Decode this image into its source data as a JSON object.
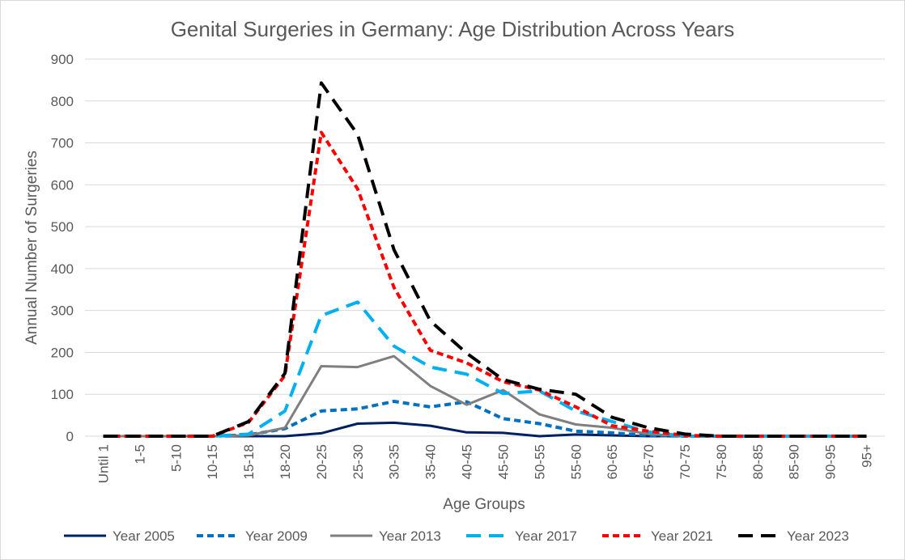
{
  "chart_data": {
    "type": "line",
    "title": "Genital Surgeries in Germany: Age Distribution Across Years",
    "xlabel": "Age Groups",
    "ylabel": "Annual Number of Surgeries",
    "ylim": [
      0,
      900
    ],
    "yticks": [
      0,
      100,
      200,
      300,
      400,
      500,
      600,
      700,
      800,
      900
    ],
    "grid": true,
    "legend_position": "bottom",
    "categories": [
      "Until 1",
      "1-5",
      "5-10",
      "10-15",
      "15-18",
      "18-20",
      "20-25",
      "25-30",
      "30-35",
      "35-40",
      "40-45",
      "45-50",
      "50-55",
      "55-60",
      "60-65",
      "65-70",
      "70-75",
      "75-80",
      "80-85",
      "85-90",
      "90-95",
      "95+"
    ],
    "series": [
      {
        "name": "Year 2005",
        "color": "#002060",
        "dash": "solid",
        "values": [
          0,
          0,
          0,
          0,
          0,
          0,
          7,
          30,
          32,
          25,
          9,
          8,
          0,
          4,
          2,
          0,
          0,
          0,
          0,
          0,
          0,
          0
        ]
      },
      {
        "name": "Year 2009",
        "color": "#0070C0",
        "dash": "dash",
        "values": [
          0,
          0,
          0,
          0,
          3,
          18,
          60,
          65,
          83,
          70,
          82,
          42,
          30,
          12,
          8,
          2,
          0,
          0,
          0,
          0,
          0,
          0
        ]
      },
      {
        "name": "Year 2013",
        "color": "#7F7F7F",
        "dash": "solid",
        "values": [
          0,
          0,
          0,
          0,
          2,
          20,
          167,
          165,
          191,
          120,
          75,
          110,
          52,
          28,
          20,
          5,
          0,
          0,
          0,
          0,
          0,
          0
        ]
      },
      {
        "name": "Year 2017",
        "color": "#00B0F0",
        "dash": "longdash",
        "values": [
          0,
          0,
          0,
          0,
          5,
          60,
          288,
          320,
          215,
          165,
          148,
          102,
          108,
          60,
          35,
          10,
          0,
          0,
          0,
          0,
          0,
          0
        ]
      },
      {
        "name": "Year 2021",
        "color": "#FF0000",
        "dash": "dash",
        "values": [
          0,
          0,
          0,
          0,
          33,
          145,
          725,
          590,
          355,
          205,
          175,
          130,
          110,
          70,
          25,
          12,
          2,
          0,
          0,
          0,
          0,
          0
        ]
      },
      {
        "name": "Year 2023",
        "color": "#000000",
        "dash": "longdash",
        "values": [
          0,
          0,
          0,
          0,
          35,
          150,
          843,
          720,
          445,
          275,
          198,
          135,
          112,
          100,
          45,
          20,
          5,
          0,
          0,
          0,
          0,
          0
        ]
      }
    ]
  }
}
